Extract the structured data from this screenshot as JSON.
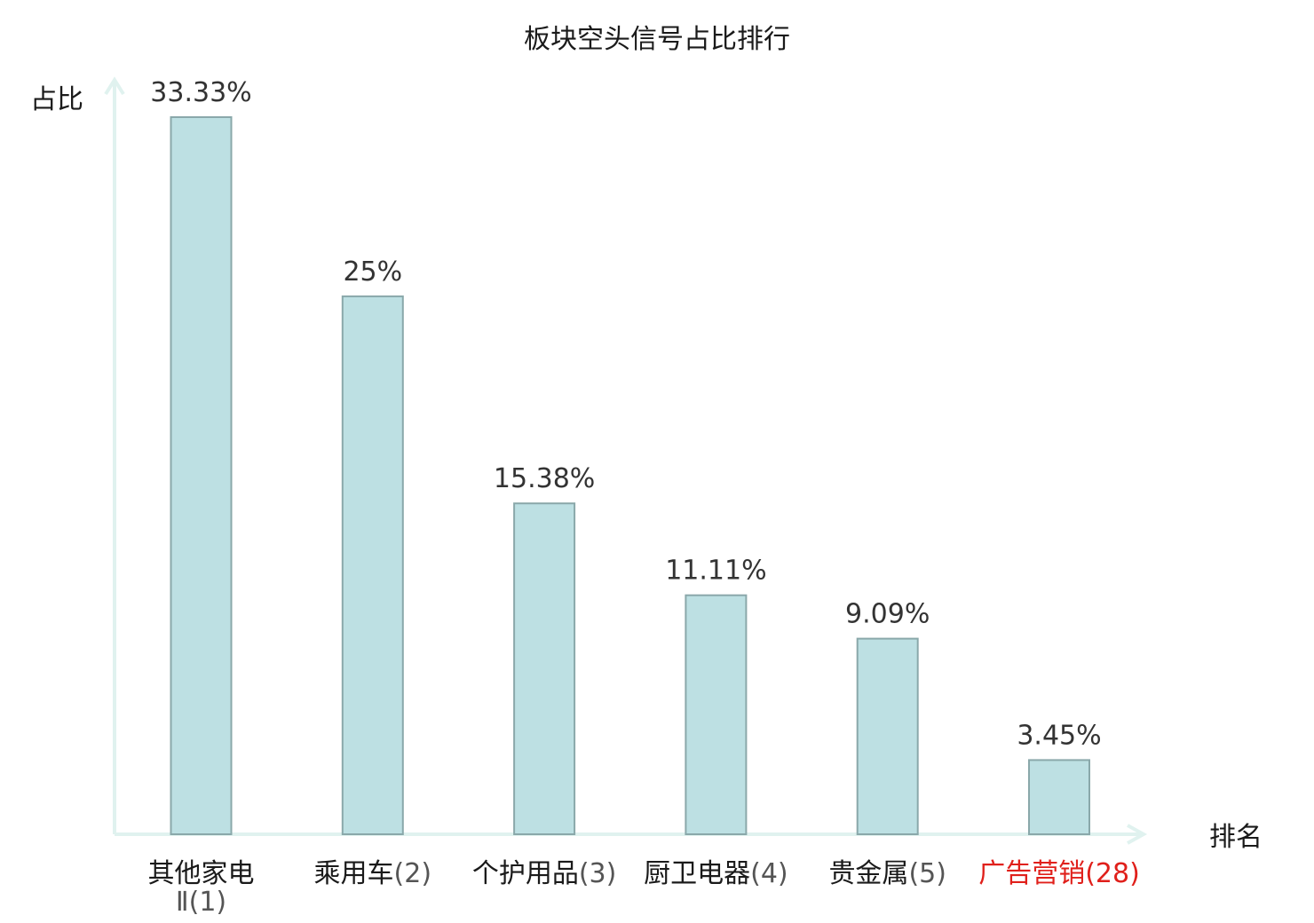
{
  "chart_data": {
    "type": "bar",
    "title": "板块空头信号占比排行",
    "ylabel": "占比",
    "xlabel": "排名",
    "ylim": [
      0,
      36
    ],
    "grid": false,
    "categories": [
      {
        "name": "其他家电Ⅱ",
        "rank": "(1)"
      },
      {
        "name": "乘用车",
        "rank": "(2)"
      },
      {
        "name": "个护用品",
        "rank": "(3)"
      },
      {
        "name": "厨卫电器",
        "rank": "(4)"
      },
      {
        "name": "贵金属",
        "rank": "(5)"
      },
      {
        "name": "广告营销",
        "rank": "(28)"
      }
    ],
    "values": [
      33.33,
      25,
      15.38,
      11.11,
      9.09,
      3.45
    ],
    "value_labels": [
      "33.33%",
      "25%",
      "15.38%",
      "11.11%",
      "9.09%",
      "3.45%"
    ],
    "highlight_index": 5,
    "colors": {
      "bar_fill": "#bde0e3",
      "bar_stroke": "#8aa8aa",
      "axis": "#e0f2ef",
      "text": "#1a1a1a",
      "rank_text": "#555555",
      "highlight": "#e0201b"
    }
  }
}
